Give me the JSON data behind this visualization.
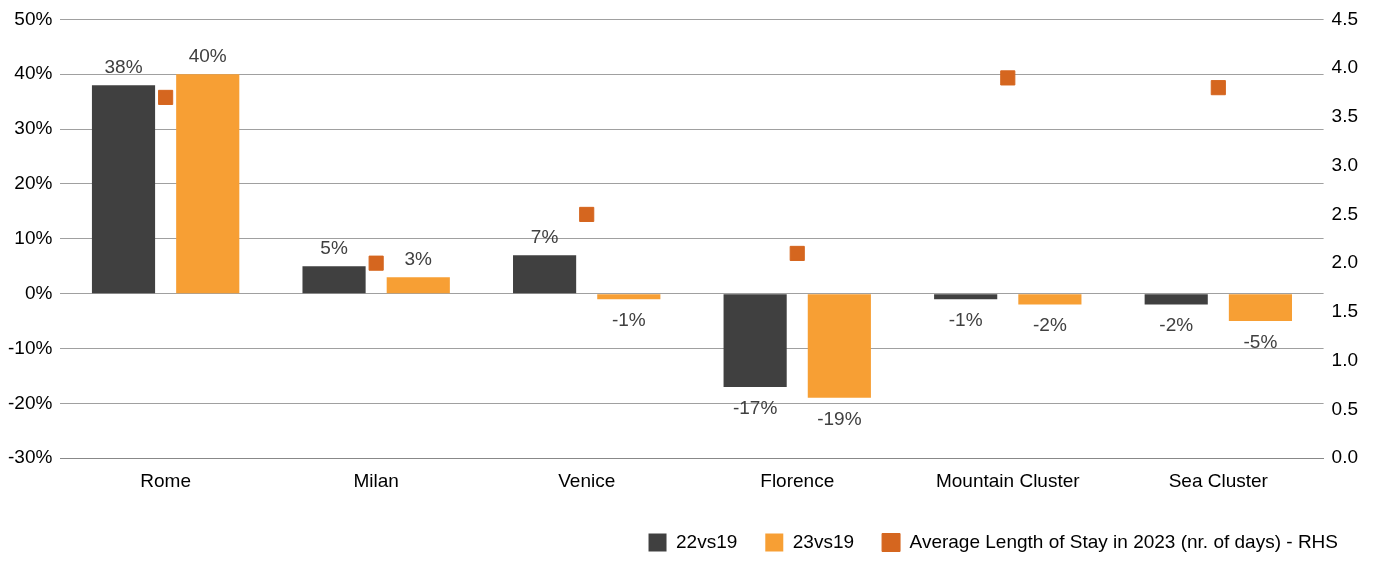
{
  "chart_data": {
    "type": "bar",
    "categories": [
      "Rome",
      "Milan",
      "Venice",
      "Florence",
      "Mountain Cluster",
      "Sea Cluster"
    ],
    "series": [
      {
        "name": "22vs19",
        "color": "#404040",
        "values": [
          38,
          5,
          7,
          -17,
          -1,
          -2
        ],
        "value_labels": [
          "38%",
          "5%",
          "7%",
          "-17%",
          "-1%",
          "-2%"
        ]
      },
      {
        "name": "23vs19",
        "color": "#f79f34",
        "values": [
          40,
          3,
          -1,
          -19,
          -2,
          -5
        ],
        "value_labels": [
          "40%",
          "3%",
          "-1%",
          "-19%",
          "-2%",
          "-5%"
        ]
      },
      {
        "name": "Average Length of Stay in 2023 (nr. of days) - RHS",
        "type": "scatter",
        "axis": "y2",
        "color": "#d5661f",
        "x": [
          "Rome",
          "Milan",
          "Venice",
          "Florence",
          "Mountain Cluster",
          "Sea Cluster"
        ],
        "values": [
          3.7,
          2.0,
          2.5,
          2.1,
          3.9,
          3.8
        ]
      }
    ],
    "ylim": [
      -30,
      50
    ],
    "yticks": [
      {
        "value": -30,
        "label": "-30%"
      },
      {
        "value": -20,
        "label": "-20%"
      },
      {
        "value": -10,
        "label": "-10%"
      },
      {
        "value": 0,
        "label": "0%"
      },
      {
        "value": 10,
        "label": "10%"
      },
      {
        "value": 20,
        "label": "20%"
      },
      {
        "value": 30,
        "label": "30%"
      },
      {
        "value": 40,
        "label": "40%"
      },
      {
        "value": 50,
        "label": "50%"
      }
    ],
    "y2lim": [
      0,
      4.5
    ],
    "y2ticks": [
      {
        "value": 0,
        "label": "0.0"
      },
      {
        "value": 0.5,
        "label": "0.5"
      },
      {
        "value": 1,
        "label": "1.0"
      },
      {
        "value": 1.5,
        "label": "1.5"
      },
      {
        "value": 2,
        "label": "2.0"
      },
      {
        "value": 2.5,
        "label": "2.5"
      },
      {
        "value": 3,
        "label": "3.0"
      },
      {
        "value": 3.5,
        "label": "3.5"
      },
      {
        "value": 4,
        "label": "4.0"
      },
      {
        "value": 4.5,
        "label": "4.5"
      }
    ],
    "grid": "y",
    "legend": "bottom",
    "marker": "square"
  }
}
